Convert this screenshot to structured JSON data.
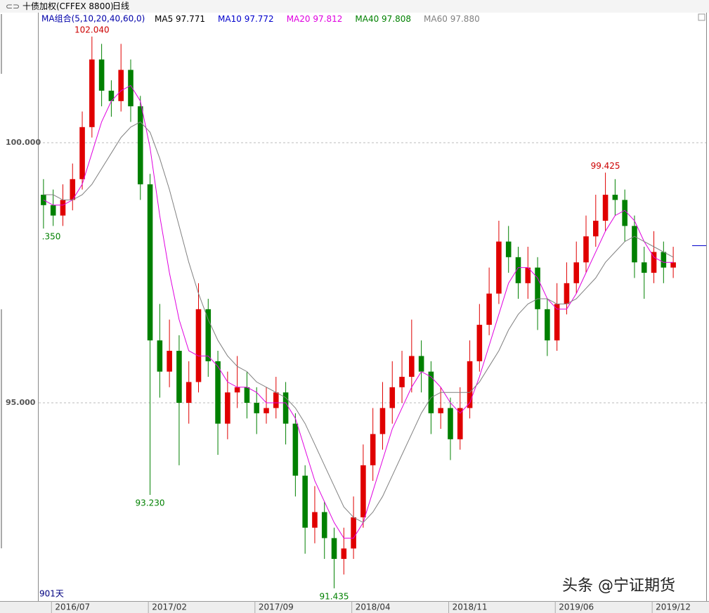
{
  "header": {
    "instrument": "十债加权(CFFEX 8800)",
    "period": "日线",
    "indicator": "MA组合(5,10,20,40,60,0)",
    "bar_count": "901天"
  },
  "watermark": "头条 @宁证期货",
  "chart_data": {
    "type": "candlestick",
    "up_color": "#e00000",
    "down_color": "#008000",
    "xlim": [
      -0.5,
      65.5
    ],
    "xticks": [
      {
        "value": 3,
        "label": "2016/07"
      },
      {
        "value": 13,
        "label": "2017/02"
      },
      {
        "value": 24,
        "label": "2017/09"
      },
      {
        "value": 34,
        "label": "2018/04"
      },
      {
        "value": 44,
        "label": "2018/11"
      },
      {
        "value": 55,
        "label": "2019/06"
      },
      {
        "value": 65,
        "label": "2019/12"
      }
    ],
    "ylim": [
      91.19,
      102.5
    ],
    "yticks": [
      {
        "value": 95,
        "label": "95.000"
      },
      {
        "value": 100,
        "label": "100.000"
      }
    ],
    "grid": true,
    "open": [
      99.0,
      98.8,
      98.6,
      98.9,
      99.3,
      100.3,
      101.6,
      101.0,
      100.8,
      101.4,
      100.7,
      99.2,
      96.2,
      95.6,
      96.0,
      95.0,
      95.4,
      96.8,
      95.8,
      94.6,
      95.2,
      95.3,
      95.0,
      94.8,
      94.9,
      95.2,
      94.6,
      93.6,
      92.6,
      92.9,
      92.4,
      92.0,
      92.2,
      92.8,
      93.8,
      94.4,
      94.9,
      95.3,
      95.5,
      95.9,
      95.6,
      94.8,
      94.9,
      94.3,
      94.9,
      95.8,
      96.5,
      97.1,
      98.1,
      97.8,
      97.3,
      97.6,
      96.8,
      96.2,
      96.9,
      97.3,
      97.7,
      98.2,
      98.5,
      99.0,
      98.9,
      98.4,
      97.7,
      97.5,
      97.9,
      97.6
    ],
    "high": [
      99.3,
      99.1,
      99.2,
      99.6,
      100.6,
      102.04,
      101.9,
      101.2,
      101.9,
      101.6,
      100.9,
      99.4,
      96.9,
      96.6,
      96.3,
      95.8,
      97.3,
      97.0,
      96.0,
      95.6,
      95.9,
      95.6,
      95.3,
      95.3,
      95.5,
      95.4,
      94.8,
      93.8,
      93.4,
      93.1,
      92.6,
      92.6,
      93.2,
      94.2,
      94.9,
      95.4,
      95.8,
      96.0,
      96.6,
      96.2,
      95.8,
      95.3,
      95.1,
      95.3,
      96.2,
      96.9,
      97.6,
      98.5,
      98.4,
      98.0,
      98.0,
      97.8,
      97.0,
      97.3,
      97.7,
      98.1,
      98.6,
      99.0,
      99.425,
      99.3,
      99.1,
      98.6,
      98.0,
      98.3,
      98.1,
      98.0
    ],
    "low": [
      98.35,
      98.4,
      98.4,
      98.7,
      99.1,
      100.1,
      100.7,
      100.5,
      100.6,
      100.4,
      98.9,
      93.23,
      95.1,
      95.3,
      93.8,
      94.6,
      95.2,
      95.5,
      94.0,
      94.3,
      94.9,
      94.7,
      94.4,
      94.6,
      94.7,
      94.2,
      93.2,
      92.1,
      92.3,
      92.0,
      91.435,
      91.7,
      92.0,
      92.6,
      93.5,
      94.1,
      94.6,
      95.0,
      95.2,
      95.2,
      94.4,
      94.5,
      93.9,
      94.1,
      94.7,
      95.6,
      96.3,
      96.9,
      97.5,
      97.0,
      97.0,
      96.4,
      95.9,
      96.0,
      96.7,
      97.1,
      97.5,
      98.0,
      98.3,
      98.6,
      98.1,
      97.4,
      97.0,
      97.3,
      97.3,
      97.4
    ],
    "close": [
      98.8,
      98.6,
      98.9,
      99.3,
      100.3,
      101.6,
      101.0,
      100.8,
      101.4,
      100.7,
      99.2,
      96.2,
      95.6,
      96.0,
      95.0,
      95.4,
      96.8,
      95.8,
      94.6,
      95.2,
      95.3,
      95.0,
      94.8,
      94.9,
      95.2,
      94.6,
      93.6,
      92.6,
      92.9,
      92.4,
      92.0,
      92.2,
      92.8,
      93.8,
      94.4,
      94.9,
      95.3,
      95.5,
      95.9,
      95.6,
      94.8,
      94.9,
      94.3,
      94.9,
      95.8,
      96.5,
      97.1,
      98.1,
      97.8,
      97.3,
      97.6,
      96.8,
      96.2,
      96.9,
      97.3,
      97.7,
      98.2,
      98.5,
      99.0,
      98.9,
      98.4,
      97.7,
      97.5,
      97.9,
      97.6,
      97.7
    ],
    "series": [
      {
        "name": "MA5",
        "color": "#000000",
        "last_label": "97.771"
      },
      {
        "name": "MA10",
        "color": "#0000cc",
        "last_label": "97.772"
      },
      {
        "name": "MA20",
        "color": "#e000e0",
        "last_label": "97.812",
        "values": [
          98.9,
          98.8,
          98.8,
          98.9,
          99.2,
          99.8,
          100.4,
          100.8,
          101.0,
          101.1,
          100.8,
          99.9,
          98.6,
          97.5,
          96.6,
          96.0,
          95.9,
          95.9,
          95.7,
          95.4,
          95.3,
          95.3,
          95.2,
          95.0,
          95.0,
          95.0,
          94.7,
          94.1,
          93.5,
          93.1,
          92.7,
          92.4,
          92.4,
          92.7,
          93.3,
          93.9,
          94.5,
          94.9,
          95.3,
          95.6,
          95.5,
          95.3,
          95.0,
          94.8,
          95.0,
          95.5,
          96.1,
          96.7,
          97.3,
          97.6,
          97.6,
          97.4,
          97.0,
          96.8,
          96.8,
          97.1,
          97.5,
          97.9,
          98.3,
          98.6,
          98.7,
          98.5,
          98.1,
          97.8,
          97.7,
          97.7
        ]
      },
      {
        "name": "MA40",
        "color": "#008000",
        "last_label": "97.808"
      },
      {
        "name": "MA60",
        "color": "#808080",
        "last_label": "97.880",
        "values": [
          99.0,
          99.0,
          98.9,
          98.9,
          99.0,
          99.2,
          99.5,
          99.8,
          100.1,
          100.3,
          100.4,
          100.2,
          99.7,
          99.1,
          98.4,
          97.7,
          97.1,
          96.6,
          96.2,
          95.9,
          95.7,
          95.6,
          95.4,
          95.3,
          95.2,
          95.1,
          94.9,
          94.6,
          94.2,
          93.8,
          93.4,
          93.0,
          92.8,
          92.7,
          92.9,
          93.2,
          93.6,
          94.0,
          94.4,
          94.8,
          95.1,
          95.2,
          95.2,
          95.2,
          95.2,
          95.4,
          95.7,
          96.0,
          96.4,
          96.7,
          96.9,
          97.0,
          97.0,
          96.9,
          96.9,
          97.0,
          97.2,
          97.4,
          97.7,
          97.9,
          98.1,
          98.2,
          98.1,
          98.0,
          97.9,
          97.8
        ]
      }
    ],
    "annotations": [
      {
        "index": 5,
        "value": 102.04,
        "label": "102.040",
        "color": "#cc0000",
        "side": "above"
      },
      {
        "index": 0,
        "value": 98.35,
        "label": ".350",
        "color": "#008000",
        "side": "below"
      },
      {
        "index": 11,
        "value": 93.23,
        "label": "93.230",
        "color": "#008000",
        "side": "below"
      },
      {
        "index": 30,
        "value": 91.435,
        "label": "91.435",
        "color": "#008000",
        "side": "below"
      },
      {
        "index": 58,
        "value": 99.425,
        "label": "99.425",
        "color": "#cc0000",
        "side": "above"
      }
    ]
  }
}
